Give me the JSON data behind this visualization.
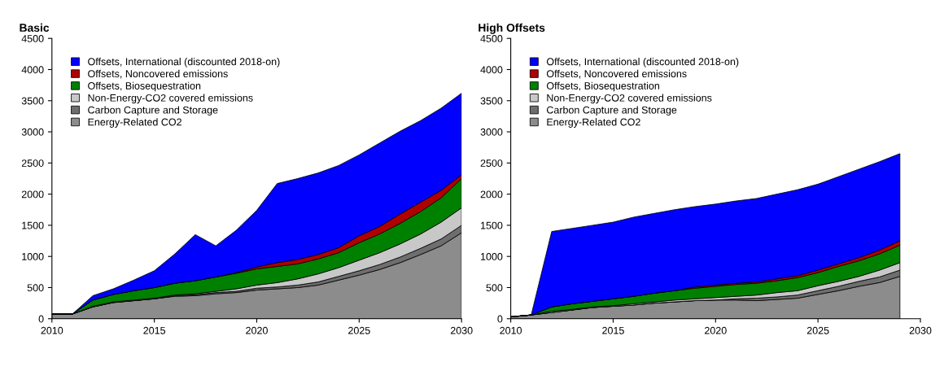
{
  "chart_data": [
    {
      "type": "area",
      "title": "Basic",
      "stacked": true,
      "legend": "top left",
      "grid": false,
      "x": [
        2010,
        2011,
        2012,
        2013,
        2014,
        2015,
        2016,
        2017,
        2018,
        2019,
        2020,
        2021,
        2022,
        2023,
        2024,
        2025,
        2026,
        2027,
        2028,
        2029,
        2030
      ],
      "xlim": [
        2010,
        2030
      ],
      "xticks": [
        2010,
        2015,
        2020,
        2025,
        2030
      ],
      "ylim": [
        0,
        4500
      ],
      "yticks": [
        0,
        500,
        1000,
        1500,
        2000,
        2500,
        3000,
        3500,
        4000,
        4500
      ],
      "series": [
        {
          "name": "Energy-Related CO2",
          "color": "#8c8c8c",
          "values": [
            75,
            75,
            190,
            260,
            290,
            320,
            360,
            370,
            400,
            420,
            460,
            480,
            500,
            540,
            620,
            700,
            790,
            900,
            1030,
            1170,
            1380
          ]
        },
        {
          "name": "Carbon Capture and Storage",
          "color": "#6e6e6e",
          "values": [
            0,
            0,
            0,
            0,
            0,
            0,
            10,
            15,
            20,
            20,
            30,
            30,
            40,
            50,
            60,
            70,
            80,
            90,
            100,
            110,
            120
          ]
        },
        {
          "name": "Non-Energy-CO2 covered emissions",
          "color": "#c8c8c8",
          "values": [
            0,
            0,
            10,
            10,
            10,
            10,
            10,
            15,
            20,
            40,
            50,
            70,
            100,
            130,
            140,
            170,
            190,
            210,
            230,
            270,
            280
          ]
        },
        {
          "name": "Offsets, Biosequestration",
          "color": "#008000",
          "values": [
            0,
            0,
            100,
            120,
            150,
            170,
            190,
            210,
            230,
            250,
            260,
            260,
            240,
            240,
            240,
            280,
            300,
            330,
            360,
            390,
            470
          ]
        },
        {
          "name": "Offsets, Noncovered emissions",
          "color": "#b00000",
          "values": [
            0,
            0,
            0,
            0,
            0,
            0,
            0,
            0,
            0,
            10,
            30,
            60,
            70,
            70,
            80,
            110,
            120,
            150,
            150,
            120,
            60
          ]
        },
        {
          "name": "Offsets, International (discounted 2018-on)",
          "color": "#0000ff",
          "values": [
            0,
            0,
            70,
            90,
            170,
            270,
            470,
            740,
            500,
            680,
            910,
            1270,
            1300,
            1310,
            1320,
            1300,
            1340,
            1330,
            1310,
            1320,
            1310
          ]
        }
      ]
    },
    {
      "type": "area",
      "title": "High Offsets",
      "stacked": true,
      "legend": "top left",
      "grid": false,
      "x": [
        2010,
        2011,
        2012,
        2013,
        2014,
        2015,
        2016,
        2017,
        2018,
        2019,
        2020,
        2021,
        2022,
        2023,
        2024,
        2025,
        2026,
        2027,
        2028,
        2029
      ],
      "xlim": [
        2010,
        2030
      ],
      "xticks": [
        2010,
        2015,
        2020,
        2025,
        2030
      ],
      "ylim": [
        0,
        4500
      ],
      "yticks": [
        0,
        500,
        1000,
        1500,
        2000,
        2500,
        3000,
        3500,
        4000,
        4500
      ],
      "series": [
        {
          "name": "Energy-Related CO2",
          "color": "#8c8c8c",
          "values": [
            30,
            60,
            100,
            140,
            180,
            200,
            220,
            250,
            270,
            290,
            300,
            300,
            290,
            310,
            330,
            390,
            450,
            520,
            580,
            680
          ]
        },
        {
          "name": "Carbon Capture and Storage",
          "color": "#6e6e6e",
          "values": [
            0,
            0,
            0,
            0,
            0,
            0,
            0,
            0,
            0,
            0,
            0,
            20,
            40,
            40,
            50,
            60,
            70,
            80,
            90,
            100
          ]
        },
        {
          "name": "Non-Energy-CO2 covered emissions",
          "color": "#c8c8c8",
          "values": [
            0,
            0,
            20,
            10,
            10,
            10,
            20,
            20,
            30,
            30,
            40,
            40,
            50,
            70,
            70,
            80,
            80,
            80,
            110,
            120
          ]
        },
        {
          "name": "Offsets, Biosequestration",
          "color": "#008000",
          "values": [
            0,
            0,
            70,
            90,
            90,
            110,
            120,
            140,
            150,
            170,
            180,
            190,
            190,
            190,
            210,
            210,
            240,
            250,
            260,
            280
          ]
        },
        {
          "name": "Offsets, Noncovered emissions",
          "color": "#b00000",
          "values": [
            0,
            0,
            0,
            0,
            0,
            0,
            0,
            0,
            0,
            20,
            20,
            20,
            20,
            30,
            30,
            40,
            40,
            50,
            60,
            70
          ]
        },
        {
          "name": "Offsets, International (discounted 2018-on)",
          "color": "#0000ff",
          "values": [
            0,
            0,
            1210,
            1210,
            1220,
            1230,
            1270,
            1280,
            1300,
            1290,
            1300,
            1320,
            1340,
            1360,
            1380,
            1380,
            1400,
            1420,
            1420,
            1400
          ]
        }
      ]
    }
  ]
}
